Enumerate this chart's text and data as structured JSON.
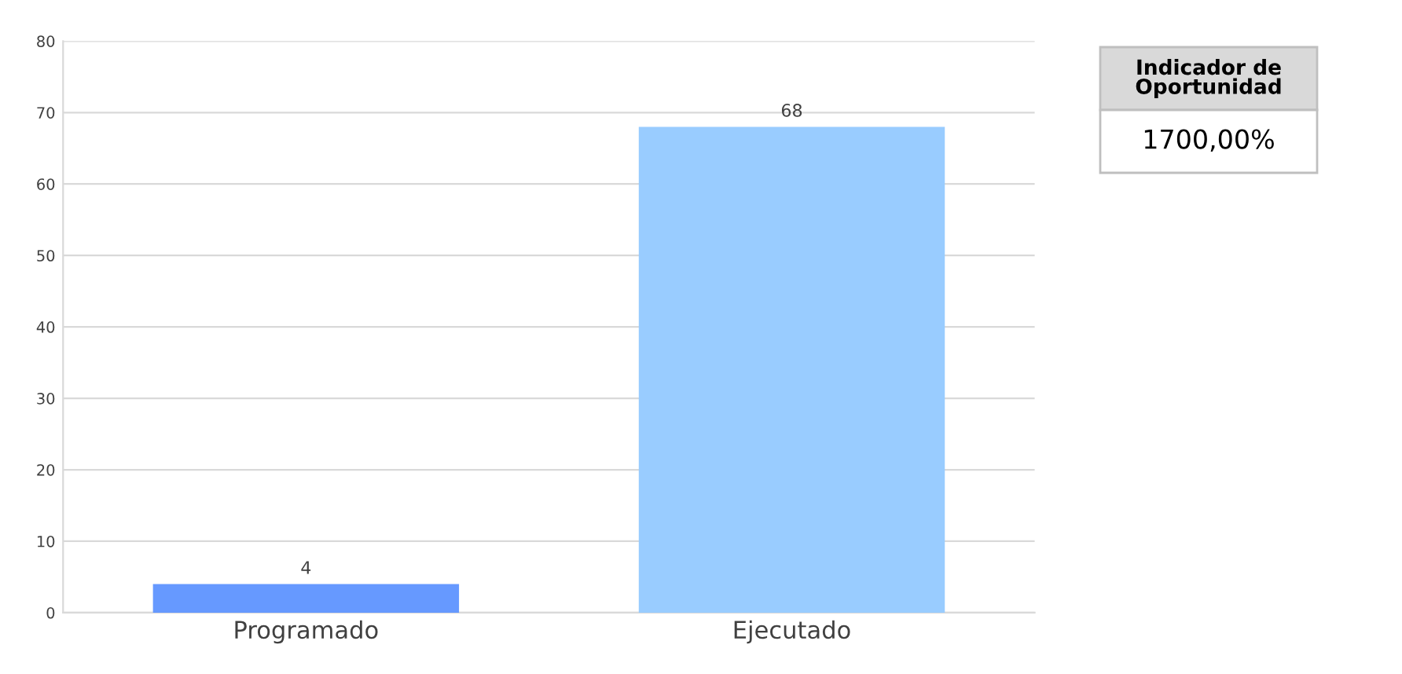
{
  "chart_data": {
    "type": "bar",
    "categories": [
      "Programado",
      "Ejecutado"
    ],
    "values": [
      4,
      68
    ],
    "colors": [
      "#6699ff",
      "#99ccff"
    ],
    "ylim": [
      0,
      80
    ],
    "yticks": [
      0,
      10,
      20,
      30,
      40,
      50,
      60,
      70,
      80
    ],
    "grid": "y",
    "data_labels": true,
    "annotations": [
      "Indicador de\nOportunidad",
      "1700,00%"
    ]
  }
}
